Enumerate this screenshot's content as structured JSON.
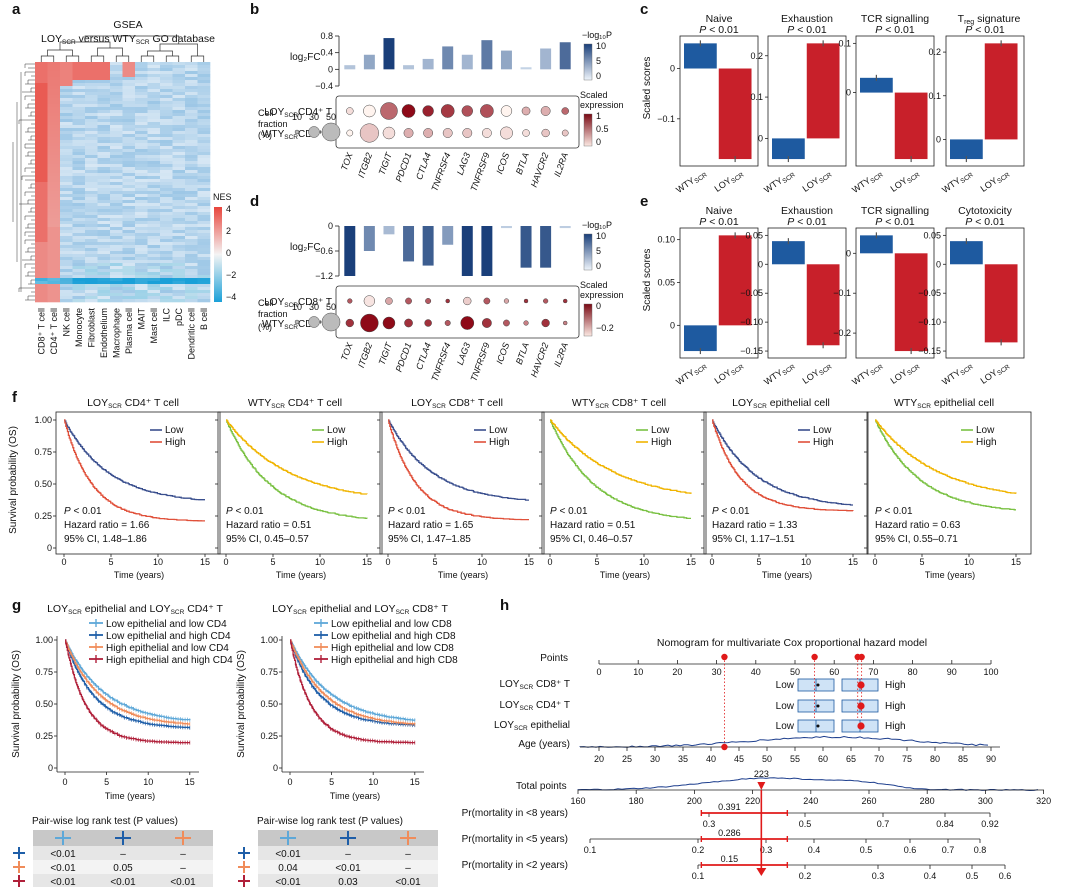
{
  "panel_letters": [
    "a",
    "b",
    "c",
    "d",
    "e",
    "f",
    "g",
    "h"
  ],
  "a": {
    "title": "GSEA",
    "subtitle_pre": "LOY",
    "subtitle_sub1": "SCR",
    "subtitle_mid": " versus WTY",
    "subtitle_sub2": "SCR",
    "subtitle_post": " GO database",
    "columns": [
      "CD8⁺ T cell",
      "CD4⁺ T cell",
      "NK cell",
      "Monocyte",
      "Fibroblast",
      "Endothelium",
      "Macrophage",
      "Plasma cell",
      "MAIT",
      "Mast cell",
      "ILC",
      "pDC",
      "Dendritic cell",
      "B cell"
    ],
    "legend_title": "NES",
    "legend_ticks": [
      "4",
      "2",
      "0",
      "−2",
      "−4"
    ]
  },
  "b": {
    "ylabel": "log₂FC",
    "yticks": [
      "0.8",
      "0.4",
      "0",
      "−0.4"
    ],
    "rows": [
      "LOYSCRCD4⁺ T",
      "WTYSCRCD4⁺ T"
    ],
    "row_pre": [
      "LOY",
      "WTY"
    ],
    "row_post": [
      "CD4⁺ T",
      "CD4⁺ T"
    ],
    "genes": [
      "TOX",
      "ITGB2",
      "TIGIT",
      "PDCD1",
      "CTLA4",
      "TNFRSF4",
      "LAG3",
      "TNFRSF9",
      "ICOS",
      "BTLA",
      "HAVCR2",
      "IL2RA"
    ],
    "legend_p": "−log₁₀P",
    "legend_p_ticks": [
      "10",
      "5",
      "0"
    ],
    "legend_expr": "Scaled expression",
    "legend_expr_ticks": [
      "1",
      "0.5",
      "0"
    ],
    "size_title": "Cell fraction (%)",
    "size_ticks": [
      "10",
      "30",
      "50"
    ]
  },
  "c": {
    "ylabel": "Scaled scores",
    "panels": [
      {
        "title": "Naive",
        "p": "P < 0.01",
        "yticks": [
          "0",
          "−0.1"
        ]
      },
      {
        "title": "Exhaustion",
        "p": "P < 0.01",
        "yticks": [
          "0.2",
          "0.1",
          "0"
        ]
      },
      {
        "title": "TCR signalling",
        "p": "P < 0.01",
        "yticks": [
          "0.1",
          "0"
        ]
      },
      {
        "title": "Treg signature",
        "p": "P < 0.01",
        "yticks": [
          "0.2",
          "0.1",
          "0"
        ]
      }
    ],
    "xlabels": [
      "WTYSCR",
      "LOYSCR"
    ]
  },
  "d": {
    "ylabel": "log₂FC",
    "yticks": [
      "0",
      "−0.6",
      "−1.2"
    ],
    "row_pre": [
      "LOY",
      "WTY"
    ],
    "row_post": [
      "CD8⁺ T",
      "CD8⁺ T"
    ],
    "genes": [
      "TOX",
      "ITGB2",
      "TIGIT",
      "PDCD1",
      "CTLA4",
      "TNFRSF4",
      "LAG3",
      "TNFRSF9",
      "ICOS",
      "BTLA",
      "HAVCR2",
      "IL2RA"
    ],
    "legend_p": "−log₁₀P",
    "legend_p_ticks": [
      "10",
      "5",
      "0"
    ],
    "legend_expr": "Scaled expression",
    "legend_expr_ticks": [
      "0",
      "−0.2"
    ],
    "size_title": "Cell fraction (%)",
    "size_ticks": [
      "10",
      "30",
      "50"
    ]
  },
  "e": {
    "ylabel": "Scaled scores",
    "panels": [
      {
        "title": "Naive",
        "p": "P < 0.01",
        "yticks": [
          "0.10",
          "0.05",
          "0"
        ]
      },
      {
        "title": "Exhaustion",
        "p": "P < 0.01",
        "yticks": [
          "0.05",
          "0",
          "−0.05",
          "−0.10",
          "−0.15"
        ]
      },
      {
        "title": "TCR signalling",
        "p": "P < 0.01",
        "yticks": [
          "0",
          "−0.1",
          "−0.2"
        ]
      },
      {
        "title": "Cytotoxicity",
        "p": "P < 0.01",
        "yticks": [
          "0.05",
          "0",
          "−0.05",
          "−0.10",
          "−0.15"
        ]
      }
    ]
  },
  "f": {
    "ylabel": "Survival probability (OS)",
    "xlabel": "Time (years)",
    "yticks": [
      "1.00",
      "0.75",
      "0.50",
      "0.25",
      "0"
    ],
    "xticks": [
      "0",
      "5",
      "10",
      "15"
    ],
    "panels": [
      {
        "pre": "LOY",
        "post": " CD4⁺ T cell",
        "p": "P < 0.01",
        "hr": "Hazard ratio = 1.66",
        "ci": "95% CI, 1.48–1.86",
        "scheme": "loy"
      },
      {
        "pre": "WTY",
        "post": " CD4⁺ T cell",
        "p": "P < 0.01",
        "hr": "Hazard ratio = 0.51",
        "ci": "95% CI, 0.45–0.57",
        "scheme": "wty"
      },
      {
        "pre": "LOY",
        "post": " CD8⁺ T cell",
        "p": "P < 0.01",
        "hr": "Hazard ratio = 1.65",
        "ci": "95% CI, 1.47–1.85",
        "scheme": "loy"
      },
      {
        "pre": "WTY",
        "post": " CD8⁺ T cell",
        "p": "P < 0.01",
        "hr": "Hazard ratio = 0.51",
        "ci": "95% CI, 0.46–0.57",
        "scheme": "wty"
      },
      {
        "pre": "LOY",
        "post": " epithelial cell",
        "p": "P < 0.01",
        "hr": "Hazard ratio = 1.33",
        "ci": "95% CI, 1.17–1.51",
        "scheme": "loy"
      },
      {
        "pre": "WTY",
        "post": " epithelial cell",
        "p": "P < 0.01",
        "hr": "Hazard ratio = 0.63",
        "ci": "95% CI, 0.55–0.71",
        "scheme": "wty"
      }
    ],
    "legend": [
      "Low",
      "High"
    ]
  },
  "g": {
    "panels": [
      {
        "title_a": "LOY",
        "title_b": " epithelial and LOY",
        "title_c": " CD4⁺ T",
        "legend": [
          "Low epithelial and low CD4",
          "Low epithelial and high CD4",
          "High epithelial and low CD4",
          "High epithelial and high CD4"
        ],
        "table": [
          [
            "<0.01",
            "–",
            "–"
          ],
          [
            "<0.01",
            "0.05",
            "–"
          ],
          [
            "<0.01",
            "<0.01",
            "<0.01"
          ]
        ]
      },
      {
        "title_a": "LOY",
        "title_b": " epithelial and LOY",
        "title_c": " CD8⁺ T",
        "legend": [
          "Low epithelial and low CD8",
          "Low epithelial and high CD8",
          "High epithelial and low CD8",
          "High epithelial and high CD8"
        ],
        "table": [
          [
            "<0.01",
            "–",
            "–"
          ],
          [
            "0.04",
            "<0.01",
            "–"
          ],
          [
            "<0.01",
            "0.03",
            "<0.01"
          ]
        ]
      }
    ],
    "table_title": "Pair-wise log rank test (P values)",
    "colors": [
      "#5ea8d8",
      "#1e5ea8",
      "#f08c5a",
      "#b0203a"
    ]
  },
  "h": {
    "title": "Nomogram for multivariate Cox proportional hazard model",
    "points_label": "Points",
    "points_ticks": [
      "0",
      "10",
      "20",
      "30",
      "40",
      "50",
      "60",
      "70",
      "80",
      "90",
      "100"
    ],
    "rows": [
      {
        "pre": "LOY",
        "post": "CD8⁺ T",
        "low": "Low",
        "high": "High"
      },
      {
        "pre": "LOY",
        "post": "CD4⁺ T",
        "low": "Low",
        "high": "High"
      },
      {
        "pre": "LOY",
        "post": "epithelial",
        "low": "Low",
        "high": "High"
      }
    ],
    "age_label": "Age (years)",
    "age_ticks": [
      "20",
      "25",
      "30",
      "35",
      "40",
      "45",
      "50",
      "55",
      "60",
      "65",
      "70",
      "75",
      "80",
      "85",
      "90"
    ],
    "total_label": "Total points",
    "total_ticks": [
      "160",
      "180",
      "200",
      "220",
      "240",
      "260",
      "280",
      "300",
      "320"
    ],
    "total_value": "223",
    "pr_rows": [
      {
        "label": "Pr(mortality in <8 years)",
        "ticks": [
          "0.3",
          "0.5",
          "0.7",
          "0.84",
          "0.92"
        ],
        "value": "0.391"
      },
      {
        "label": "Pr(mortality in <5 years)",
        "ticks": [
          "0.1",
          "0.2",
          "0.3",
          "0.4",
          "0.5",
          "0.6",
          "0.7",
          "0.8"
        ],
        "value": "0.286"
      },
      {
        "label": "Pr(mortality in <2 years)",
        "ticks": [
          "0.1",
          "0.2",
          "0.3",
          "0.4",
          "0.5",
          "0.6"
        ],
        "value": "0.15"
      }
    ]
  },
  "chart_data": [
    {
      "type": "heatmap",
      "panel": "a",
      "columns": [
        "CD8⁺ T cell",
        "CD4⁺ T cell",
        "NK cell",
        "Monocyte",
        "Fibroblast",
        "Endothelium",
        "Macrophage",
        "Plasma cell",
        "MAIT",
        "Mast cell",
        "ILC",
        "pDC",
        "Dendritic cell",
        "B cell"
      ],
      "color_range": [
        -4,
        4
      ]
    },
    {
      "type": "bar",
      "panel": "b",
      "categories": [
        "TOX",
        "ITGB2",
        "TIGIT",
        "PDCD1",
        "CTLA4",
        "TNFRSF4",
        "LAG3",
        "TNFRSF9",
        "ICOS",
        "BTLA",
        "HAVCR2",
        "IL2RA"
      ],
      "values": [
        0.1,
        0.35,
        0.75,
        0.1,
        0.25,
        0.55,
        0.35,
        0.7,
        0.45,
        0.05,
        0.5,
        0.65
      ],
      "neglogp": [
        1,
        3,
        10,
        1,
        2,
        5,
        2,
        6,
        3,
        0,
        2,
        7
      ],
      "ylim": [
        -0.4,
        0.8
      ],
      "dots": {
        "LOY": {
          "size": [
            12,
            25,
            38,
            28,
            22,
            28,
            22,
            28,
            22,
            15,
            18,
            12
          ],
          "expr": [
            0.1,
            0.0,
            0.6,
            1.0,
            0.9,
            0.8,
            0.7,
            0.7,
            0.0,
            0.3,
            0.3,
            0.6
          ]
        },
        "WTY": {
          "size": [
            10,
            42,
            25,
            18,
            18,
            18,
            18,
            18,
            26,
            12,
            14,
            10
          ],
          "expr": [
            0.0,
            0.2,
            0.1,
            0.3,
            0.3,
            0.2,
            0.2,
            0.1,
            0.1,
            0.1,
            0.2,
            0.2
          ]
        }
      }
    },
    {
      "type": "bar",
      "panel": "c",
      "categories": [
        "WTYSCR",
        "LOYSCR"
      ],
      "series": [
        {
          "name": "Naive",
          "values": [
            0.05,
            -0.18
          ]
        },
        {
          "name": "Exhaustion",
          "values": [
            -0.05,
            0.23
          ]
        },
        {
          "name": "TCR signalling",
          "values": [
            0.03,
            -0.135
          ]
        },
        {
          "name": "Treg signature",
          "values": [
            -0.045,
            0.22
          ]
        }
      ]
    },
    {
      "type": "bar",
      "panel": "d",
      "categories": [
        "TOX",
        "ITGB2",
        "TIGIT",
        "PDCD1",
        "CTLA4",
        "TNFRSF4",
        "LAG3",
        "TNFRSF9",
        "ICOS",
        "BTLA",
        "HAVCR2",
        "IL2RA"
      ],
      "values": [
        -1.2,
        -0.6,
        -0.2,
        -0.85,
        -0.95,
        -0.45,
        -1.2,
        -1.2,
        -0.05,
        -1.0,
        -1.0,
        -0.05
      ],
      "ylim": [
        -1.2,
        0
      ],
      "dots": {
        "LOY": {
          "size": [
            6,
            22,
            12,
            10,
            8,
            4,
            14,
            10,
            6,
            4,
            6,
            4
          ],
          "expr": [
            -0.2,
            -0.02,
            -0.1,
            -0.2,
            -0.2,
            -0.25,
            -0.05,
            -0.2,
            -0.1,
            -0.25,
            -0.2,
            -0.25
          ]
        },
        "WTY": {
          "size": [
            14,
            40,
            25,
            15,
            12,
            8,
            28,
            18,
            10,
            6,
            14,
            4
          ],
          "expr": [
            -0.25,
            -0.3,
            -0.3,
            -0.25,
            -0.25,
            -0.2,
            -0.3,
            -0.25,
            -0.2,
            -0.15,
            -0.25,
            -0.15
          ]
        }
      }
    },
    {
      "type": "bar",
      "panel": "e",
      "categories": [
        "WTYSCR",
        "LOYSCR"
      ],
      "series": [
        {
          "name": "Naive",
          "values": [
            -0.03,
            0.105
          ]
        },
        {
          "name": "Exhaustion",
          "values": [
            0.04,
            -0.14
          ]
        },
        {
          "name": "TCR signalling",
          "values": [
            0.045,
            -0.245
          ]
        },
        {
          "name": "Cytotoxicity",
          "values": [
            0.04,
            -0.135
          ]
        }
      ]
    },
    {
      "type": "line",
      "panel": "f",
      "x_range": [
        0,
        15
      ],
      "y_range": [
        0,
        1
      ],
      "series": [
        {
          "name": "Low",
          "panel": 0,
          "end": 0.35
        },
        {
          "name": "High",
          "panel": 0,
          "end": 0.21
        },
        {
          "name": "Low",
          "panel": 1,
          "end": 0.2
        },
        {
          "name": "High",
          "panel": 1,
          "end": 0.35
        },
        {
          "name": "Low",
          "panel": 2,
          "end": 0.35
        },
        {
          "name": "High",
          "panel": 2,
          "end": 0.22
        },
        {
          "name": "Low",
          "panel": 3,
          "end": 0.2
        },
        {
          "name": "High",
          "panel": 3,
          "end": 0.36
        },
        {
          "name": "Low",
          "panel": 4,
          "end": 0.31
        },
        {
          "name": "High",
          "panel": 4,
          "end": 0.29
        },
        {
          "name": "Low",
          "panel": 5,
          "end": 0.27
        },
        {
          "name": "High",
          "panel": 5,
          "end": 0.36
        }
      ]
    },
    {
      "type": "line",
      "panel": "g",
      "x_range": [
        0,
        15
      ],
      "y_range": [
        0,
        1
      ],
      "series": [
        {
          "name": "Low epithelial and low CD4",
          "end": 0.35
        },
        {
          "name": "Low epithelial and high CD4",
          "end": 0.31
        },
        {
          "name": "High epithelial and low CD4",
          "end": 0.33
        },
        {
          "name": "High epithelial and high CD4",
          "end": 0.2
        },
        {
          "name": "Low epithelial and low CD8",
          "end": 0.35
        },
        {
          "name": "Low epithelial and high CD8",
          "end": 0.33
        },
        {
          "name": "High epithelial and low CD8",
          "end": 0.33
        },
        {
          "name": "High epithelial and high CD8",
          "end": 0.2
        }
      ]
    }
  ]
}
